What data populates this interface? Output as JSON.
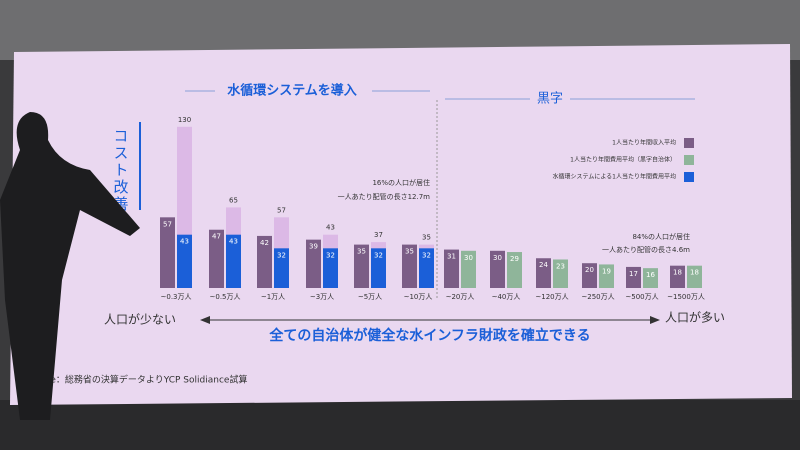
{
  "chart_data": {
    "type": "bar",
    "title": "水循環システムを導入",
    "subtitle": "黒字",
    "side_label": "コスト改善",
    "categories": [
      "~0.3万人",
      "~0.5万人",
      "~1万人",
      "~3万人",
      "~5万人",
      "~10万人",
      "~20万人",
      "~40万人",
      "~120万人",
      "~250万人",
      "~500万人",
      "~1500万人"
    ],
    "series": [
      {
        "name": "1人当たり年間収入平均",
        "color": "#7b5d86",
        "values": [
          57,
          47,
          42,
          39,
          35,
          35,
          31,
          30,
          24,
          20,
          17,
          18
        ]
      },
      {
        "color": "#dcb9e6",
        "values": [
          130,
          65,
          57,
          43,
          37,
          35,
          null,
          null,
          null,
          null,
          null,
          null
        ]
      },
      {
        "name": "1人当たり年間費用平均（黒字自治体）",
        "color": "#8fb59a",
        "values": [
          null,
          null,
          null,
          null,
          null,
          null,
          30,
          29,
          23,
          19,
          16,
          18
        ]
      },
      {
        "name": "水循環システムによる1人当たり年間費用平均",
        "color": "#1b5fd8",
        "values": [
          43,
          43,
          32,
          32,
          32,
          32,
          null,
          null,
          null,
          null,
          null,
          null
        ]
      }
    ],
    "annotations": [
      "16%の人口が居住",
      "一人あたり配管の長さ12.7m",
      "84%の人口が居住",
      "一人あたり配管の長さ4.6m"
    ],
    "left_label": "人口が少ない",
    "right_label": "人口が多い",
    "conclusion": "全ての自治体が健全な水インフラ財政を確立できる",
    "source": "Source：総務省の決算データよりYCP Solidiance試算"
  }
}
